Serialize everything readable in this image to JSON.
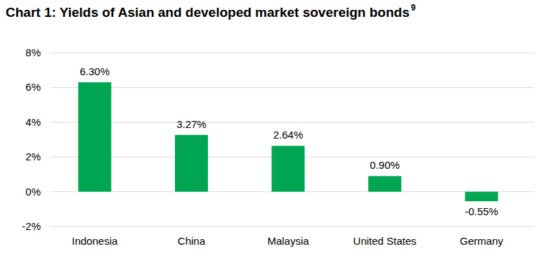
{
  "chart_data": {
    "type": "bar",
    "title": "Chart 1: Yields of Asian and developed market sovereign bonds",
    "title_footnote": "9",
    "categories": [
      "Indonesia",
      "China",
      "Malaysia",
      "United States",
      "Germany"
    ],
    "values": [
      6.3,
      3.27,
      2.64,
      0.9,
      -0.55
    ],
    "value_labels": [
      "6.30%",
      "3.27%",
      "2.64%",
      "0.90%",
      "-0.55%"
    ],
    "color": "#00a651",
    "ylim": [
      -2,
      8
    ],
    "yticks": [
      {
        "value": -2,
        "label": "-2%"
      },
      {
        "value": 0,
        "label": "0%"
      },
      {
        "value": 2,
        "label": "2%"
      },
      {
        "value": 4,
        "label": "4%"
      },
      {
        "value": 6,
        "label": "6%"
      },
      {
        "value": 8,
        "label": "8%"
      }
    ],
    "grid": true,
    "data_labels": true
  }
}
